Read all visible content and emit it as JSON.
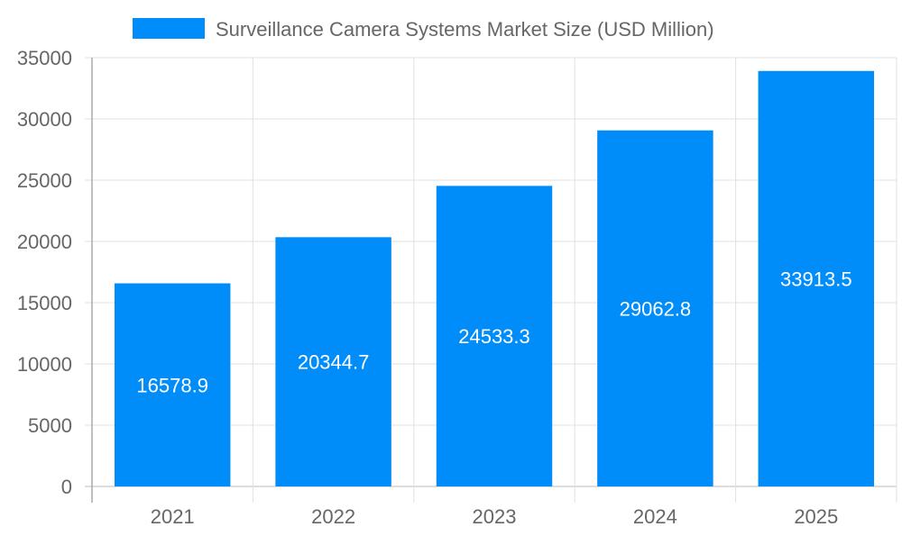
{
  "chart_data": {
    "type": "bar",
    "title": "",
    "xlabel": "",
    "ylabel": "",
    "categories": [
      "2021",
      "2022",
      "2023",
      "2024",
      "2025"
    ],
    "series": [
      {
        "name": "Surveillance Camera Systems Market Size (USD Million)",
        "values": [
          16578.9,
          20344.7,
          24533.3,
          29062.8,
          33913.5
        ],
        "labels": [
          "16578.9",
          "20344.7",
          "24533.3",
          "29062.8",
          "33913.5"
        ],
        "color": "#008dfa"
      }
    ],
    "ylim": [
      0,
      35000
    ],
    "yticks": [
      "0",
      "5000",
      "10000",
      "15000",
      "20000",
      "25000",
      "30000",
      "35000"
    ],
    "grid": true,
    "legend": "top-center",
    "data_labels": "inside-center"
  }
}
